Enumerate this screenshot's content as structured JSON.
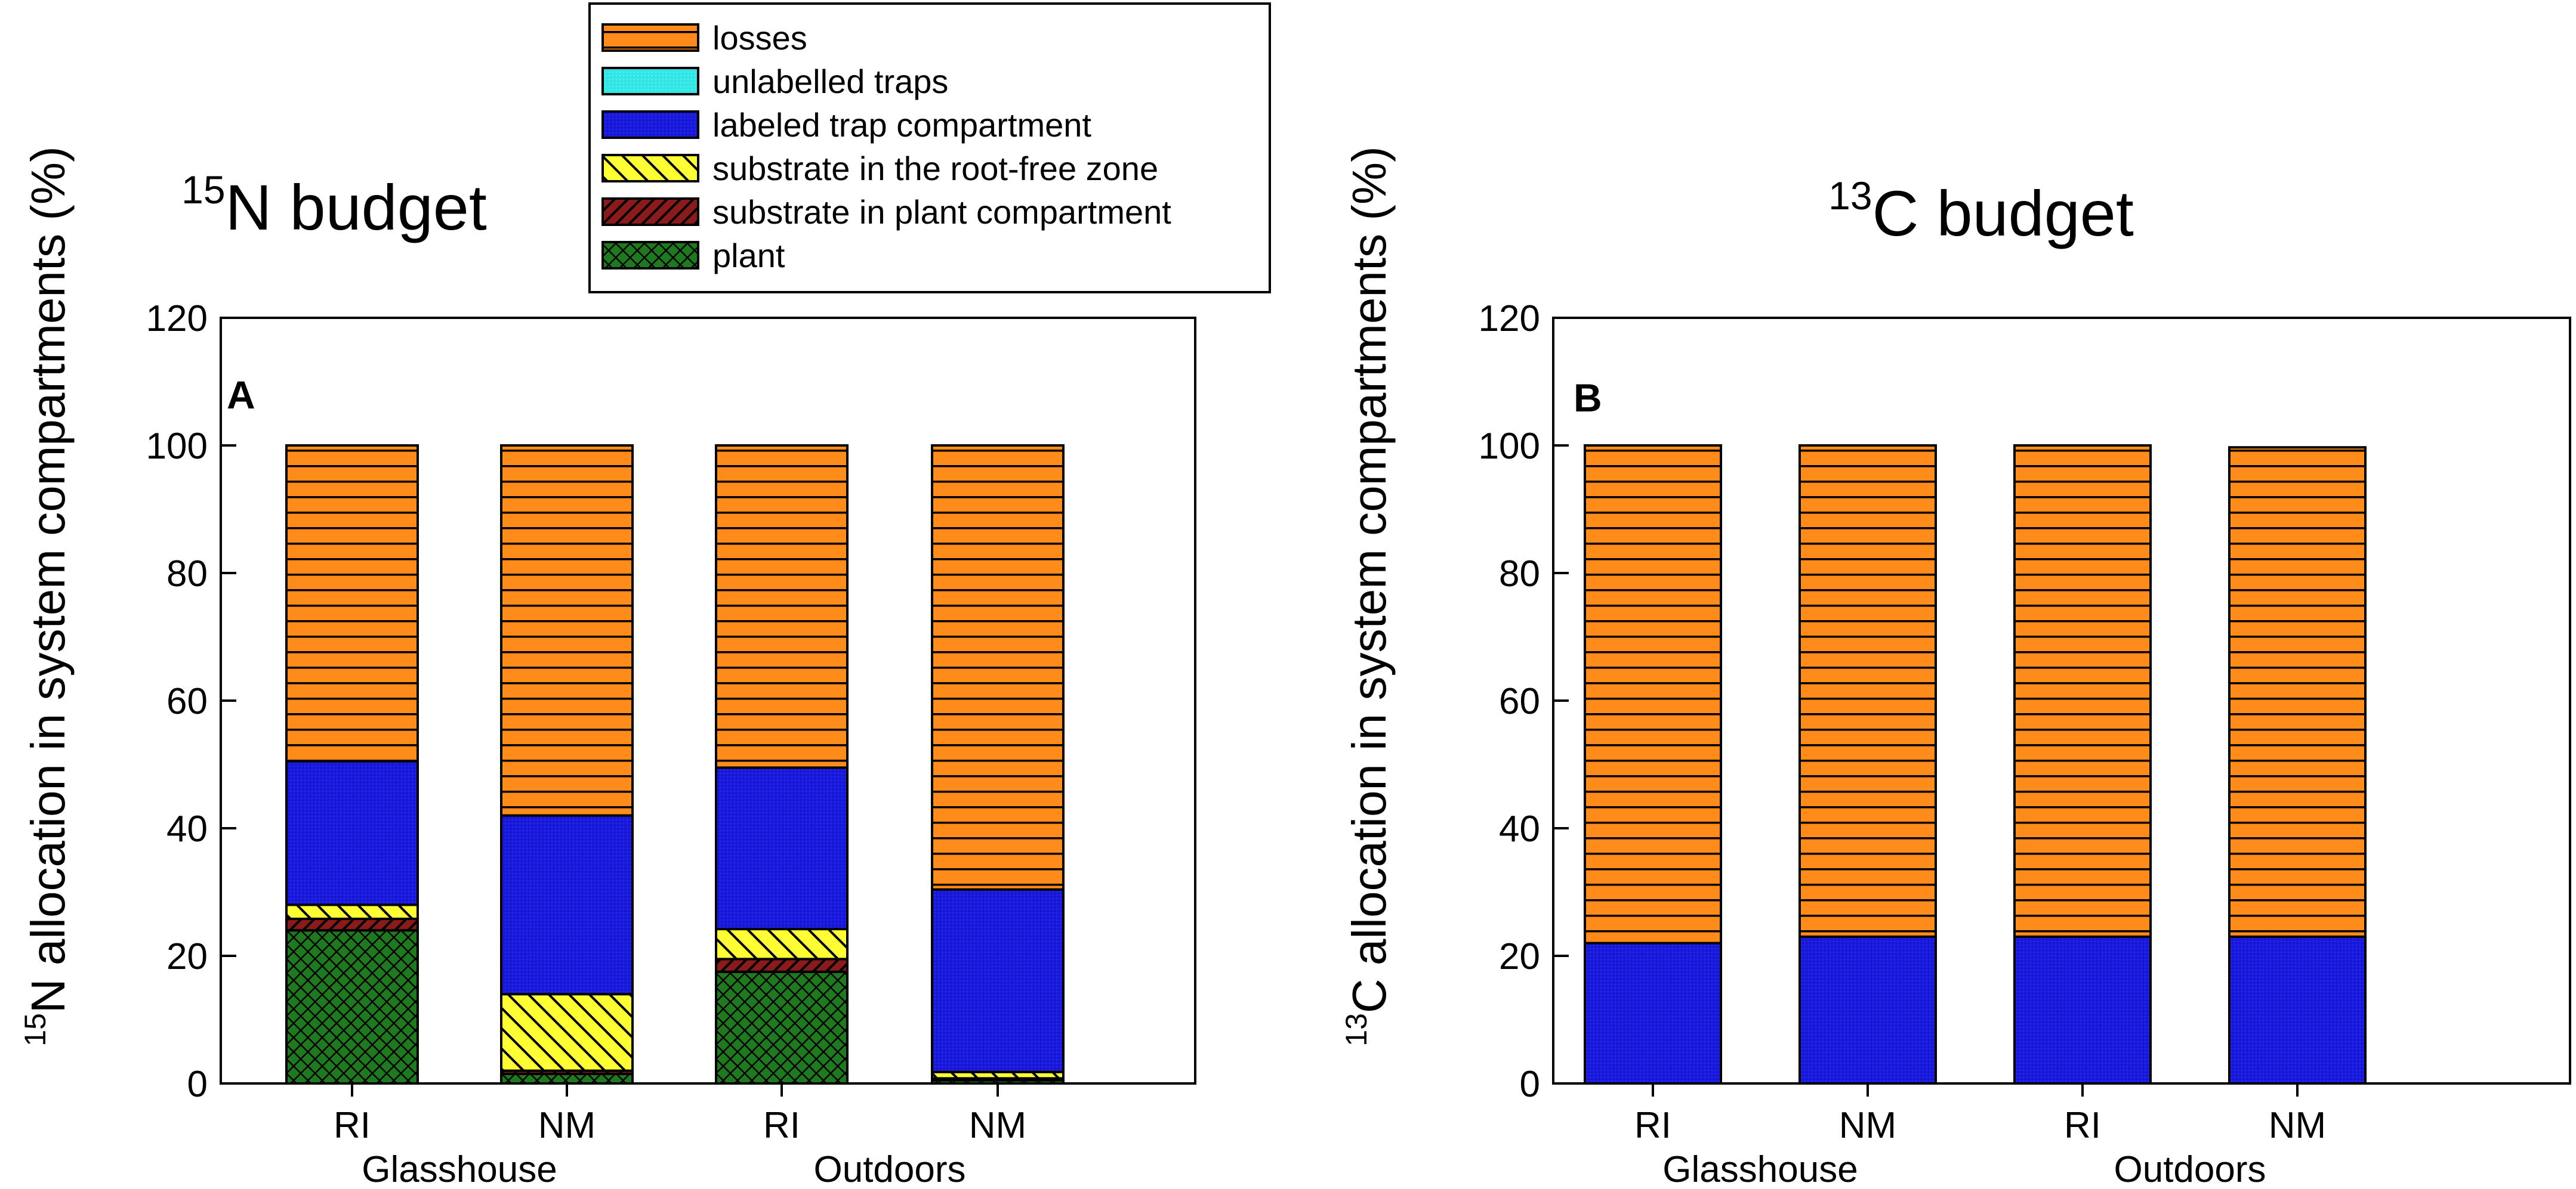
{
  "colors": {
    "plant": "#1f7a1f",
    "substrate_plant": "#8b1a1a",
    "substrate_rootfree": "#ffff33",
    "labeled_trap": "#1a1adf",
    "unlabelled_traps": "#33e6e6",
    "losses": "#ff8c1a",
    "frame": "#000000"
  },
  "legend": {
    "items": [
      {
        "key": "losses",
        "label": "losses"
      },
      {
        "key": "unlabelled_traps",
        "label": "unlabelled traps"
      },
      {
        "key": "labeled_trap",
        "label": "labeled trap compartment"
      },
      {
        "key": "substrate_rootfree",
        "label": "substrate in the root-free zone"
      },
      {
        "key": "substrate_plant",
        "label": "substrate in plant compartment"
      },
      {
        "key": "plant",
        "label": "plant"
      }
    ]
  },
  "chart_data": [
    {
      "type": "bar",
      "stacked": true,
      "title_sup": "15",
      "title_main": "N budget",
      "panel_label": "A",
      "ylabel_sup": "15",
      "ylabel_main": "N allocation in system compartments (%)",
      "ylim": [
        0,
        120
      ],
      "yticks": [
        "0",
        "20",
        "40",
        "60",
        "80",
        "100",
        "120"
      ],
      "categories": [
        "RI",
        "NM",
        "RI",
        "NM"
      ],
      "groups": [
        {
          "label": "Glasshouse",
          "span": [
            0,
            1
          ]
        },
        {
          "label": "Outdoors",
          "span": [
            2,
            3
          ]
        }
      ],
      "series": [
        {
          "key": "plant",
          "name": "plant",
          "values": [
            24,
            1.5,
            17.5,
            0.5
          ]
        },
        {
          "key": "substrate_plant",
          "name": "substrate in plant compartment",
          "values": [
            1.8,
            0.5,
            2,
            0.3
          ]
        },
        {
          "key": "substrate_rootfree",
          "name": "substrate in the root-free zone",
          "values": [
            2.2,
            12,
            4.7,
            1
          ]
        },
        {
          "key": "labeled_trap",
          "name": "labeled trap compartment",
          "values": [
            22.5,
            28,
            25.3,
            28.6
          ]
        },
        {
          "key": "unlabelled_traps",
          "name": "unlabelled traps",
          "values": [
            0,
            0,
            0,
            0
          ]
        },
        {
          "key": "losses",
          "name": "losses",
          "values": [
            49.5,
            58,
            50.5,
            69.6
          ]
        }
      ]
    },
    {
      "type": "bar",
      "stacked": true,
      "title_sup": "13",
      "title_main": "C budget",
      "panel_label": "B",
      "ylabel_sup": "13",
      "ylabel_main": "C allocation in system compartments (%)",
      "ylim": [
        0,
        120
      ],
      "yticks": [
        "0",
        "20",
        "40",
        "60",
        "80",
        "100",
        "120"
      ],
      "categories": [
        "RI",
        "NM",
        "RI",
        "NM"
      ],
      "groups": [
        {
          "label": "Glasshouse",
          "span": [
            0,
            1
          ]
        },
        {
          "label": "Outdoors",
          "span": [
            2,
            3
          ]
        }
      ],
      "series": [
        {
          "key": "plant",
          "name": "plant",
          "values": [
            0,
            0,
            0,
            0
          ]
        },
        {
          "key": "substrate_plant",
          "name": "substrate in plant compartment",
          "values": [
            0,
            0,
            0,
            0
          ]
        },
        {
          "key": "substrate_rootfree",
          "name": "substrate in the root-free zone",
          "values": [
            0,
            0,
            0,
            0
          ]
        },
        {
          "key": "labeled_trap",
          "name": "labeled trap compartment",
          "values": [
            22,
            23,
            23,
            23
          ]
        },
        {
          "key": "unlabelled_traps",
          "name": "unlabelled traps",
          "values": [
            0,
            0,
            0,
            0
          ]
        },
        {
          "key": "losses",
          "name": "losses",
          "values": [
            78,
            77,
            77,
            76.7
          ]
        }
      ]
    }
  ]
}
